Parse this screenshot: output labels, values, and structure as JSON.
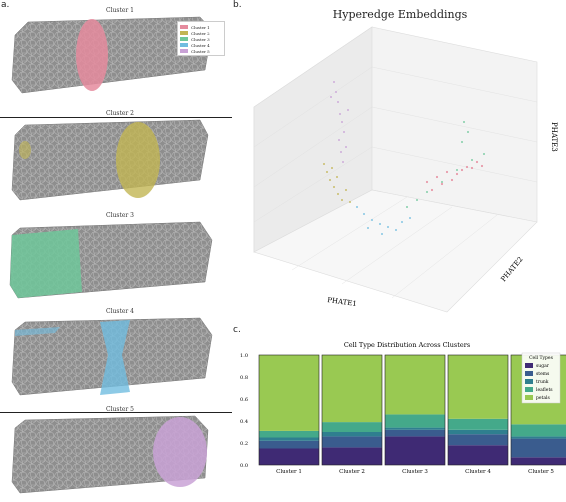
{
  "panels": {
    "a": "a.",
    "b": "b.",
    "c": "c."
  },
  "left": {
    "cluster_titles": [
      "Cluster 1",
      "Cluster 2",
      "Cluster 3",
      "Cluster 4",
      "Cluster 5"
    ],
    "legend": [
      {
        "label": "Cluster 1",
        "color": "#e58b9e"
      },
      {
        "label": "Cluster 2",
        "color": "#c2b553"
      },
      {
        "label": "Cluster 3",
        "color": "#6fc79a"
      },
      {
        "label": "Cluster 4",
        "color": "#71bde0"
      },
      {
        "label": "Cluster 5",
        "color": "#c9a2d6"
      }
    ]
  },
  "embedding": {
    "title": "Hyperedge Embeddings",
    "axis_x": "PHATE1",
    "axis_y": "PHATE2",
    "axis_z": "PHATE3"
  },
  "chart_data": {
    "type": "bar",
    "title": "Cell Type Distribution Across Clusters",
    "categories": [
      "Cluster 1",
      "Cluster 2",
      "Cluster 3",
      "Cluster 4",
      "Cluster 5"
    ],
    "ylim": [
      0,
      1.0
    ],
    "yticks": [
      "0.0",
      "0.2",
      "0.4",
      "0.6",
      "0.8",
      "1.0"
    ],
    "legend_title": "Cell Types",
    "series": [
      {
        "name": "sugar",
        "color": "#3f2a74",
        "values": [
          0.15,
          0.16,
          0.26,
          0.18,
          0.07
        ]
      },
      {
        "name": "stems",
        "color": "#3a5c8e",
        "values": [
          0.07,
          0.1,
          0.06,
          0.1,
          0.17
        ]
      },
      {
        "name": "trunk",
        "color": "#2f7f8f",
        "values": [
          0.03,
          0.04,
          0.02,
          0.04,
          0.02
        ]
      },
      {
        "name": "leaflets",
        "color": "#44a98a",
        "values": [
          0.06,
          0.09,
          0.12,
          0.1,
          0.11
        ]
      },
      {
        "name": "petals",
        "color": "#99c952",
        "values": [
          0.69,
          0.61,
          0.54,
          0.58,
          0.63
        ]
      }
    ]
  }
}
